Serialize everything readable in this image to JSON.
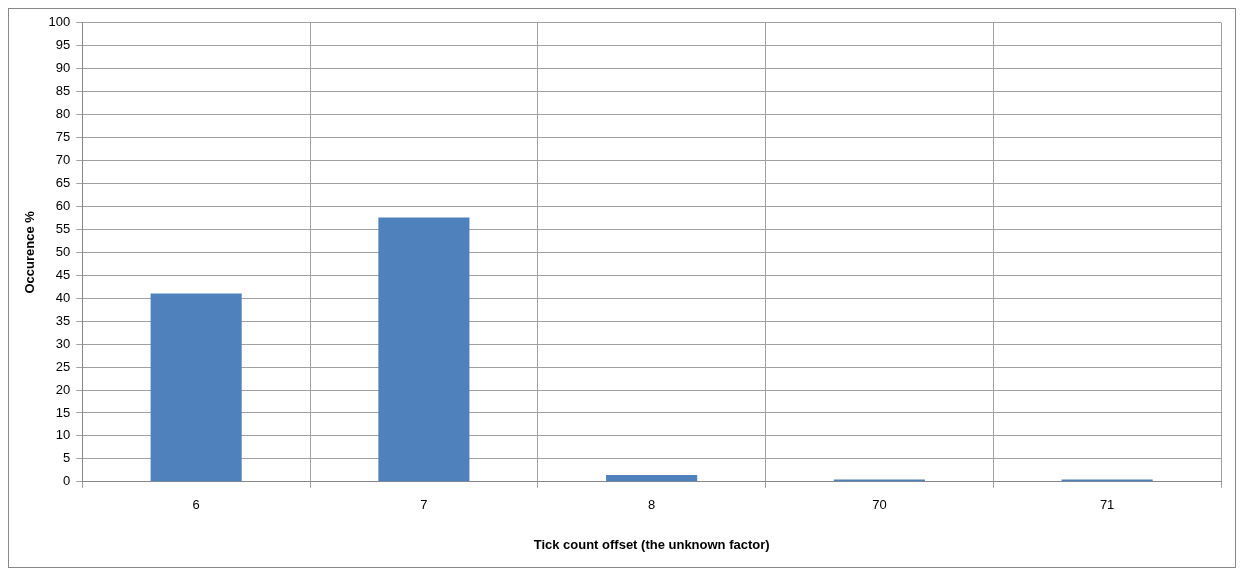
{
  "chart_data": {
    "type": "bar",
    "xlabel": "Tick count offset (the unknown factor)",
    "ylabel": "Occurence %",
    "categories": [
      "6",
      "7",
      "8",
      "70",
      "71"
    ],
    "values": [
      41,
      57.6,
      1.5,
      0.5,
      0.5
    ],
    "color": "#4f81bd",
    "ylim": [
      0,
      100
    ],
    "yticks": [
      0,
      5,
      10,
      15,
      20,
      25,
      30,
      35,
      40,
      45,
      50,
      55,
      60,
      65,
      70,
      75,
      80,
      85,
      90,
      95,
      100
    ],
    "grid": true,
    "legend": false
  }
}
